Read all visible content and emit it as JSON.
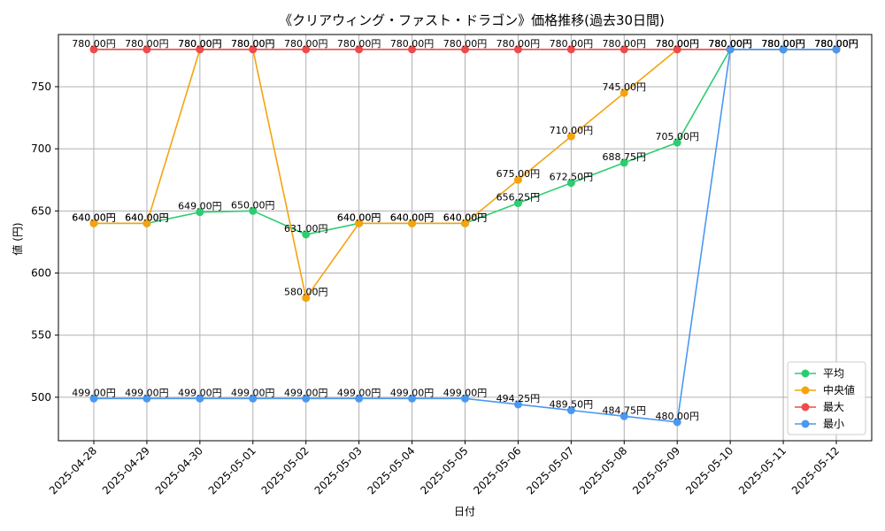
{
  "chart_data": {
    "type": "line",
    "title": "《クリアウィング・ファスト・ドラゴン》価格推移(過去30日間)",
    "xlabel": "日付",
    "ylabel": "値 (円)",
    "categories": [
      "2025-04-28",
      "2025-04-29",
      "2025-04-30",
      "2025-05-01",
      "2025-05-02",
      "2025-05-03",
      "2025-05-04",
      "2025-05-05",
      "2025-05-06",
      "2025-05-07",
      "2025-05-08",
      "2025-05-09",
      "2025-05-10",
      "2025-05-11",
      "2025-05-12"
    ],
    "ylim": [
      465,
      792
    ],
    "yticks": [
      500,
      550,
      600,
      650,
      700,
      750
    ],
    "grid": true,
    "legend_position": "bottom-right",
    "series": [
      {
        "name": "平均",
        "color": "#2ecc71",
        "values": [
          640,
          640,
          649,
          650,
          631,
          640,
          640,
          640,
          656.25,
          672.5,
          688.75,
          705,
          780,
          780,
          780
        ]
      },
      {
        "name": "中央値",
        "color": "#f5a30f",
        "values": [
          640,
          640,
          780,
          780,
          580,
          640,
          640,
          640,
          675,
          710,
          745,
          780,
          780,
          780,
          780
        ]
      },
      {
        "name": "最大",
        "color": "#f04a4a",
        "values": [
          780,
          780,
          780,
          780,
          780,
          780,
          780,
          780,
          780,
          780,
          780,
          780,
          780,
          780,
          780
        ]
      },
      {
        "name": "最小",
        "color": "#4a98f0",
        "values": [
          499,
          499,
          499,
          499,
          499,
          499,
          499,
          499,
          494.25,
          489.5,
          484.75,
          480,
          780,
          780,
          780
        ]
      }
    ],
    "label_suffix": "円"
  }
}
